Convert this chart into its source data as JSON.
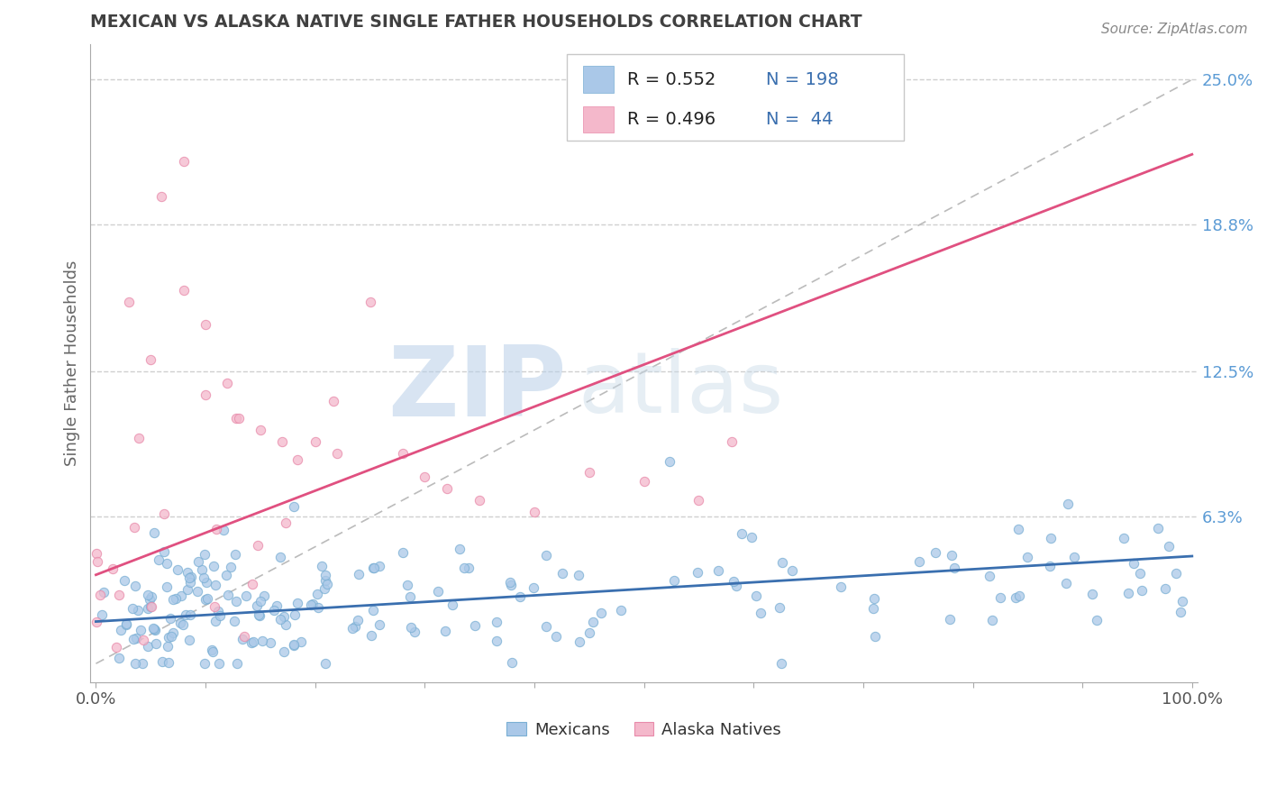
{
  "title": "MEXICAN VS ALASKA NATIVE SINGLE FATHER HOUSEHOLDS CORRELATION CHART",
  "source": "Source: ZipAtlas.com",
  "ylabel": "Single Father Households",
  "xlim": [
    0.0,
    1.0
  ],
  "ylim": [
    -0.008,
    0.265
  ],
  "blue_color": "#aac8e8",
  "blue_edge_color": "#7aafd4",
  "pink_color": "#f4b8cb",
  "pink_edge_color": "#e88aaa",
  "blue_line_color": "#3a6faf",
  "pink_line_color": "#e05080",
  "blue_r": 0.552,
  "pink_r": 0.496,
  "blue_n": 198,
  "pink_n": 44,
  "blue_slope": 0.028,
  "blue_intercept": 0.018,
  "pink_slope": 0.18,
  "pink_intercept": 0.038,
  "watermark_zip": "ZIP",
  "watermark_atlas": "atlas",
  "watermark_color": "#c8ddf0",
  "background_color": "#ffffff",
  "grid_color": "#d0d0d0",
  "title_color": "#404040",
  "axis_label_color": "#5b9bd5",
  "legend_text_color": "#3a6faf",
  "right_ytick_vals": [
    0.063,
    0.125,
    0.188,
    0.25
  ],
  "right_yticklabels": [
    "6.3%",
    "12.5%",
    "18.8%",
    "25.0%"
  ]
}
